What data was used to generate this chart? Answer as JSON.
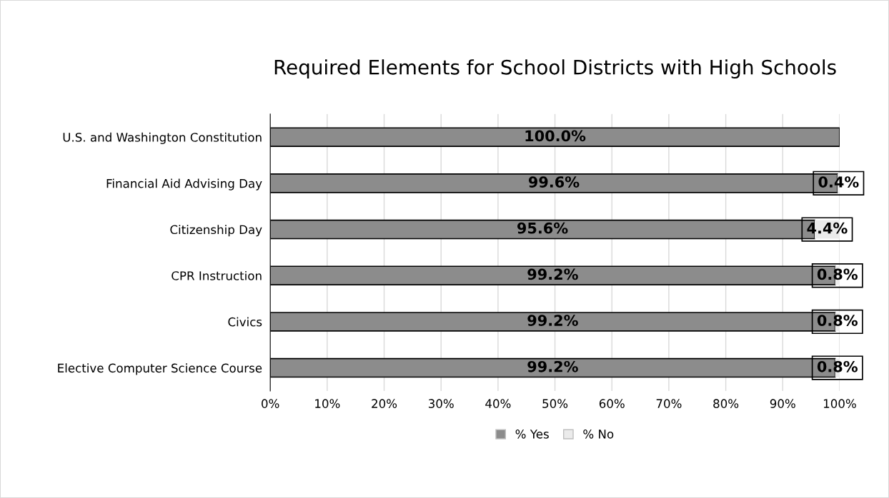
{
  "chart_data": {
    "type": "bar",
    "orientation": "horizontal",
    "stacked": true,
    "title": "Required Elements for School Districts with High Schools",
    "categories": [
      "U.S. and Washington Constitution",
      "Financial Aid Advising Day",
      "Citizenship Day",
      "CPR Instruction",
      "Civics",
      "Elective Computer Science Course"
    ],
    "series": [
      {
        "name": "% Yes",
        "color": "#8c8c8c",
        "values": [
          100.0,
          99.6,
          95.6,
          99.2,
          99.2,
          99.2
        ],
        "value_labels": [
          "100.0%",
          "99.6%",
          "95.6%",
          "99.2%",
          "99.2%",
          "99.2%"
        ]
      },
      {
        "name": "% No",
        "color": "#ebebeb",
        "values": [
          0,
          0.4,
          4.4,
          0.8,
          0.8,
          0.8
        ],
        "value_labels": [
          null,
          "0.4%",
          "4.4%",
          "0.8%",
          "0.8%",
          "0.8%"
        ]
      }
    ],
    "xlim": [
      0,
      100
    ],
    "xticks": [
      {
        "value": 0,
        "label": "0%"
      },
      {
        "value": 10,
        "label": "10%"
      },
      {
        "value": 20,
        "label": "20%"
      },
      {
        "value": 30,
        "label": "30%"
      },
      {
        "value": 40,
        "label": "40%"
      },
      {
        "value": 50,
        "label": "50%"
      },
      {
        "value": 60,
        "label": "60%"
      },
      {
        "value": 70,
        "label": "70%"
      },
      {
        "value": 80,
        "label": "80%"
      },
      {
        "value": 90,
        "label": "90%"
      },
      {
        "value": 100,
        "label": "100%"
      }
    ],
    "grid": "x",
    "legend": "bottom"
  }
}
